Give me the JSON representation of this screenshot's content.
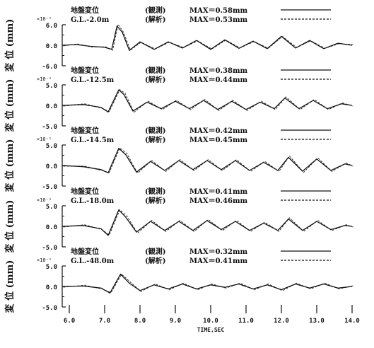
{
  "chart_data": {
    "type": "line",
    "x": {
      "label": "TIME,SEC",
      "range": [
        5.8,
        14.0
      ],
      "ticks": [
        6.0,
        7.0,
        8.0,
        9.0,
        10.0,
        11.0,
        12.0,
        13.0,
        14.0
      ],
      "tick_labels": [
        "6.0",
        "7.0",
        "8.0",
        "9.0",
        "10.0",
        "11.0",
        "12.0",
        "13.0",
        "14.0"
      ]
    },
    "ylabel": "変 位 (mm)",
    "legend_line_styles": {
      "観測": "solid",
      "解析": "dashed"
    },
    "panels": [
      {
        "title": "地盤変位",
        "depth": "G.L.-2.0m",
        "scale_note": "×10⁻¹",
        "ylim": [
          -6.0,
          6.0
        ],
        "y_tick_labels": [
          "6.0",
          "0.0",
          "-6.0"
        ],
        "series": [
          {
            "name": "観測",
            "legend_label": "(観測)",
            "max_label": "MAX＝0.58mm",
            "style": "solid"
          },
          {
            "name": "解析",
            "legend_label": "(解析)",
            "max_label": "MAX＝0.53mm",
            "style": "dashed"
          }
        ],
        "points": [
          [
            5.8,
            0.0
          ],
          [
            6.2,
            0.2
          ],
          [
            6.6,
            -0.3
          ],
          [
            7.0,
            -0.6
          ],
          [
            7.2,
            -1.2
          ],
          [
            7.35,
            5.6
          ],
          [
            7.5,
            3.8
          ],
          [
            7.7,
            -1.5
          ],
          [
            8.0,
            1.0
          ],
          [
            8.4,
            -1.2
          ],
          [
            8.8,
            1.0
          ],
          [
            9.2,
            -0.8
          ],
          [
            9.6,
            1.4
          ],
          [
            10.0,
            -1.2
          ],
          [
            10.4,
            1.6
          ],
          [
            10.8,
            -0.9
          ],
          [
            11.2,
            1.2
          ],
          [
            11.6,
            -1.0
          ],
          [
            12.0,
            2.6
          ],
          [
            12.4,
            -0.8
          ],
          [
            12.8,
            1.4
          ],
          [
            13.2,
            -1.0
          ],
          [
            13.6,
            0.6
          ],
          [
            14.0,
            0.0
          ]
        ]
      },
      {
        "title": "地盤変位",
        "depth": "G.L.-12.5m",
        "scale_note": "×10⁻¹",
        "ylim": [
          -5.0,
          5.0
        ],
        "y_tick_labels": [
          "5.0",
          "0.0",
          "-5.0"
        ],
        "series": [
          {
            "name": "観測",
            "legend_label": "(観測)",
            "max_label": "MAX＝0.38mm",
            "style": "solid"
          },
          {
            "name": "解析",
            "legend_label": "(解析)",
            "max_label": "MAX＝0.44mm",
            "style": "dashed"
          }
        ],
        "points": [
          [
            5.8,
            0.0
          ],
          [
            6.4,
            0.2
          ],
          [
            6.9,
            -0.5
          ],
          [
            7.1,
            -1.6
          ],
          [
            7.4,
            3.8
          ],
          [
            7.55,
            2.6
          ],
          [
            7.8,
            -1.4
          ],
          [
            8.2,
            0.8
          ],
          [
            8.6,
            -0.8
          ],
          [
            9.0,
            1.0
          ],
          [
            9.4,
            -0.8
          ],
          [
            9.8,
            1.2
          ],
          [
            10.2,
            -1.0
          ],
          [
            10.6,
            1.0
          ],
          [
            11.0,
            -1.0
          ],
          [
            11.4,
            0.8
          ],
          [
            11.8,
            -0.8
          ],
          [
            12.1,
            1.8
          ],
          [
            12.5,
            -0.8
          ],
          [
            12.9,
            1.2
          ],
          [
            13.3,
            -0.8
          ],
          [
            13.7,
            0.4
          ],
          [
            14.0,
            0.0
          ]
        ]
      },
      {
        "title": "地盤変位",
        "depth": "G.L.-14.5m",
        "scale_note": "×10⁻¹",
        "ylim": [
          -5.0,
          5.0
        ],
        "y_tick_labels": [
          "5.0",
          "0.0",
          "-5.0"
        ],
        "series": [
          {
            "name": "観測",
            "legend_label": "(観測)",
            "max_label": "MAX＝0.42mm",
            "style": "solid"
          },
          {
            "name": "解析",
            "legend_label": "(解析)",
            "max_label": "MAX＝0.45mm",
            "style": "dashed"
          }
        ],
        "points": [
          [
            5.8,
            0.0
          ],
          [
            6.4,
            -0.3
          ],
          [
            6.9,
            -1.0
          ],
          [
            7.1,
            -1.8
          ],
          [
            7.4,
            4.2
          ],
          [
            7.6,
            2.6
          ],
          [
            7.9,
            -1.6
          ],
          [
            8.3,
            1.0
          ],
          [
            8.7,
            -1.2
          ],
          [
            9.1,
            1.2
          ],
          [
            9.5,
            -1.0
          ],
          [
            9.9,
            1.2
          ],
          [
            10.3,
            -1.0
          ],
          [
            10.7,
            1.2
          ],
          [
            11.1,
            -1.2
          ],
          [
            11.5,
            0.8
          ],
          [
            11.9,
            -1.2
          ],
          [
            12.2,
            2.0
          ],
          [
            12.6,
            -1.4
          ],
          [
            13.0,
            1.6
          ],
          [
            13.4,
            -1.2
          ],
          [
            13.8,
            0.4
          ],
          [
            14.0,
            0.0
          ]
        ]
      },
      {
        "title": "地盤変位",
        "depth": "G.L.-18.0m",
        "scale_note": "×10⁻¹",
        "ylim": [
          -5.0,
          5.0
        ],
        "y_tick_labels": [
          "5.0",
          "0.0",
          "-5.0"
        ],
        "series": [
          {
            "name": "観測",
            "legend_label": "(観測)",
            "max_label": "MAX＝0.41mm",
            "style": "solid"
          },
          {
            "name": "解析",
            "legend_label": "(解析)",
            "max_label": "MAX＝0.46mm",
            "style": "dashed"
          }
        ],
        "points": [
          [
            5.8,
            0.0
          ],
          [
            6.4,
            0.2
          ],
          [
            6.9,
            -0.6
          ],
          [
            7.1,
            -2.2
          ],
          [
            7.4,
            4.0
          ],
          [
            7.6,
            2.2
          ],
          [
            7.9,
            -1.4
          ],
          [
            8.3,
            1.2
          ],
          [
            8.7,
            -1.0
          ],
          [
            9.1,
            1.2
          ],
          [
            9.5,
            -1.0
          ],
          [
            9.9,
            1.4
          ],
          [
            10.3,
            -0.8
          ],
          [
            10.7,
            1.2
          ],
          [
            11.1,
            -1.0
          ],
          [
            11.5,
            0.8
          ],
          [
            11.9,
            -1.0
          ],
          [
            12.2,
            1.8
          ],
          [
            12.6,
            -1.0
          ],
          [
            13.0,
            1.2
          ],
          [
            13.4,
            -0.8
          ],
          [
            13.8,
            0.2
          ],
          [
            14.0,
            0.0
          ]
        ]
      },
      {
        "title": "地盤変位",
        "depth": "G.L.-48.0m",
        "scale_note": "×10⁻¹",
        "ylim": [
          -5.0,
          5.0
        ],
        "y_tick_labels": [
          "5.0",
          "0.0",
          "-5.0"
        ],
        "series": [
          {
            "name": "観測",
            "legend_label": "(観測)",
            "max_label": "MAX＝0.32mm",
            "style": "solid"
          },
          {
            "name": "解析",
            "legend_label": "(解析)",
            "max_label": "MAX＝0.41mm",
            "style": "dashed"
          }
        ],
        "points": [
          [
            5.8,
            0.0
          ],
          [
            6.4,
            0.1
          ],
          [
            6.9,
            -0.4
          ],
          [
            7.15,
            -1.6
          ],
          [
            7.45,
            3.0
          ],
          [
            7.7,
            0.8
          ],
          [
            8.0,
            -1.0
          ],
          [
            8.4,
            0.4
          ],
          [
            8.8,
            -0.6
          ],
          [
            9.2,
            0.6
          ],
          [
            9.6,
            -0.6
          ],
          [
            10.0,
            0.4
          ],
          [
            10.4,
            -0.2
          ],
          [
            10.8,
            0.6
          ],
          [
            11.2,
            -0.6
          ],
          [
            11.6,
            0.4
          ],
          [
            12.0,
            -0.8
          ],
          [
            12.4,
            0.6
          ],
          [
            12.8,
            -0.4
          ],
          [
            13.2,
            0.6
          ],
          [
            13.6,
            -0.4
          ],
          [
            14.0,
            0.0
          ]
        ]
      }
    ]
  }
}
